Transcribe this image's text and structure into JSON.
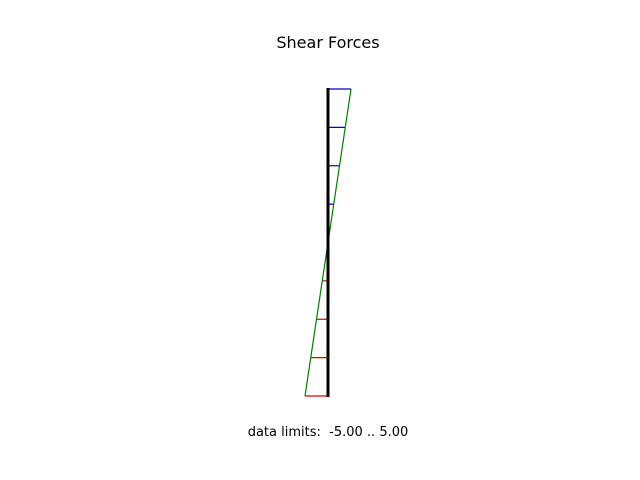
{
  "title": "Shear Forces",
  "limits": {
    "label": "data limits:",
    "min": "-5.00",
    "separator": "..",
    "max": "5.00"
  },
  "colors": {
    "member": "#000000",
    "positive": "#0000cc",
    "negative": "#dd0000",
    "envelope": "#008000"
  },
  "chart_data": {
    "type": "line",
    "orientation": "vertical",
    "data_min": -5.0,
    "data_max": 5.0,
    "stations": [
      0,
      1,
      2,
      3,
      4,
      5,
      6,
      7,
      8
    ],
    "shear": [
      5.0,
      3.75,
      2.5,
      1.25,
      0.0,
      -1.25,
      -2.5,
      -3.75,
      -5.0
    ]
  }
}
